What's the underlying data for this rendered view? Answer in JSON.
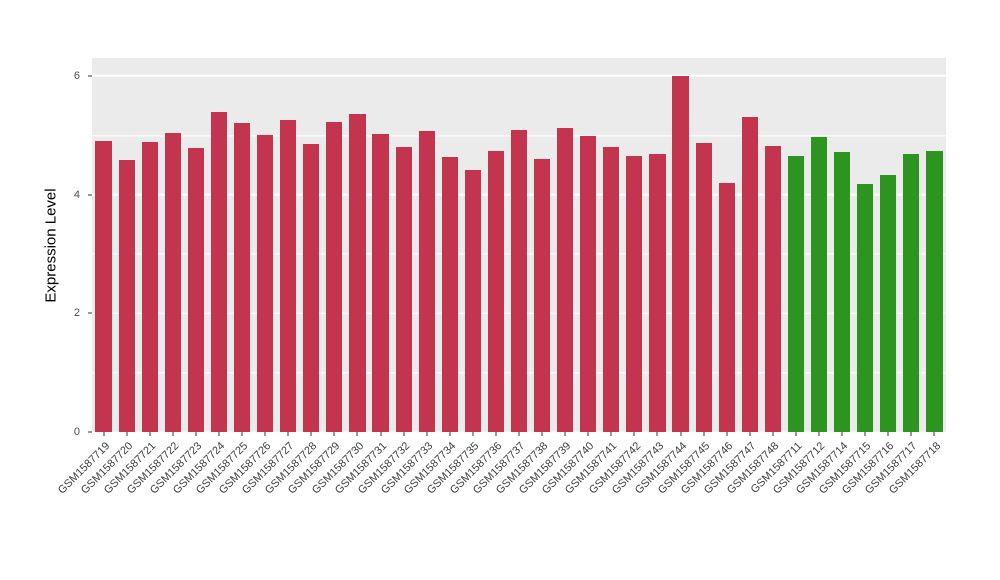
{
  "chart_data": {
    "type": "bar",
    "title": "",
    "xlabel": "",
    "ylabel": "Expression Level",
    "ylim": [
      0,
      6.3
    ],
    "yticks": [
      0,
      2,
      4,
      6
    ],
    "yminor": [
      1,
      3,
      5
    ],
    "grid": true,
    "legend": "none",
    "panel_background": "#ebebeb",
    "bar_colors": {
      "group1": "#c3344f",
      "group2": "#2e9420"
    },
    "bars": [
      {
        "label": "GSM1587719",
        "value": 4.9,
        "group": "group1"
      },
      {
        "label": "GSM1587720",
        "value": 4.58,
        "group": "group1"
      },
      {
        "label": "GSM1587721",
        "value": 4.88,
        "group": "group1"
      },
      {
        "label": "GSM1587722",
        "value": 5.03,
        "group": "group1"
      },
      {
        "label": "GSM1587723",
        "value": 4.78,
        "group": "group1"
      },
      {
        "label": "GSM1587724",
        "value": 5.39,
        "group": "group1"
      },
      {
        "label": "GSM1587725",
        "value": 5.2,
        "group": "group1"
      },
      {
        "label": "GSM1587726",
        "value": 5.0,
        "group": "group1"
      },
      {
        "label": "GSM1587727",
        "value": 5.25,
        "group": "group1"
      },
      {
        "label": "GSM1587728",
        "value": 4.85,
        "group": "group1"
      },
      {
        "label": "GSM1587729",
        "value": 5.23,
        "group": "group1"
      },
      {
        "label": "GSM1587730",
        "value": 5.35,
        "group": "group1"
      },
      {
        "label": "GSM1587731",
        "value": 5.02,
        "group": "group1"
      },
      {
        "label": "GSM1587732",
        "value": 4.8,
        "group": "group1"
      },
      {
        "label": "GSM1587733",
        "value": 5.07,
        "group": "group1"
      },
      {
        "label": "GSM1587734",
        "value": 4.63,
        "group": "group1"
      },
      {
        "label": "GSM1587735",
        "value": 4.41,
        "group": "group1"
      },
      {
        "label": "GSM1587736",
        "value": 4.73,
        "group": "group1"
      },
      {
        "label": "GSM1587737",
        "value": 5.08,
        "group": "group1"
      },
      {
        "label": "GSM1587738",
        "value": 4.6,
        "group": "group1"
      },
      {
        "label": "GSM1587739",
        "value": 5.12,
        "group": "group1"
      },
      {
        "label": "GSM1587740",
        "value": 4.98,
        "group": "group1"
      },
      {
        "label": "GSM1587741",
        "value": 4.8,
        "group": "group1"
      },
      {
        "label": "GSM1587742",
        "value": 4.65,
        "group": "group1"
      },
      {
        "label": "GSM1587743",
        "value": 4.68,
        "group": "group1"
      },
      {
        "label": "GSM1587744",
        "value": 5.99,
        "group": "group1"
      },
      {
        "label": "GSM1587745",
        "value": 4.87,
        "group": "group1"
      },
      {
        "label": "GSM1587746",
        "value": 4.2,
        "group": "group1"
      },
      {
        "label": "GSM1587747",
        "value": 5.3,
        "group": "group1"
      },
      {
        "label": "GSM1587748",
        "value": 4.82,
        "group": "group1"
      },
      {
        "label": "GSM1587711",
        "value": 4.65,
        "group": "group2"
      },
      {
        "label": "GSM1587712",
        "value": 4.97,
        "group": "group2"
      },
      {
        "label": "GSM1587714",
        "value": 4.72,
        "group": "group2"
      },
      {
        "label": "GSM1587715",
        "value": 4.18,
        "group": "group2"
      },
      {
        "label": "GSM1587716",
        "value": 4.33,
        "group": "group2"
      },
      {
        "label": "GSM1587717",
        "value": 4.68,
        "group": "group2"
      },
      {
        "label": "GSM1587718",
        "value": 4.73,
        "group": "group2"
      }
    ]
  }
}
